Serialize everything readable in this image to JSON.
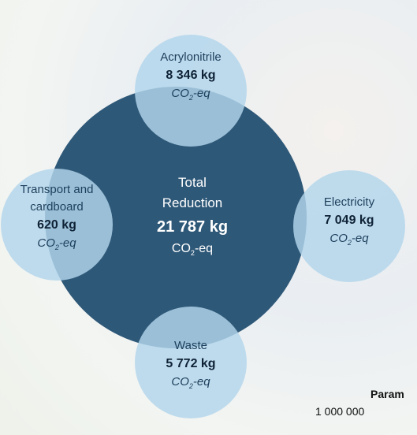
{
  "center": {
    "label_lines": [
      "Total",
      "Reduction"
    ],
    "value": "21 787 kg",
    "unit": {
      "main": "CO",
      "sub": "2",
      "tail": "-eq"
    }
  },
  "nodes": [
    {
      "label_lines": [
        "Acrylonitrile"
      ],
      "value": "8 346 kg",
      "unit": {
        "main": "CO",
        "sub": "2",
        "tail": "-eq"
      }
    },
    {
      "label_lines": [
        "Transport and",
        "cardboard"
      ],
      "value": "620 kg",
      "unit": {
        "main": "CO",
        "sub": "2",
        "tail": "-eq"
      }
    },
    {
      "label_lines": [
        "Electricity"
      ],
      "value": "7 049 kg",
      "unit": {
        "main": "CO",
        "sub": "2",
        "tail": "-eq"
      }
    },
    {
      "label_lines": [
        "Waste"
      ],
      "value": "5 772 kg",
      "unit": {
        "main": "CO",
        "sub": "2",
        "tail": "-eq"
      }
    }
  ],
  "footer": {
    "heading": "Param",
    "text": "1 000 000"
  }
}
